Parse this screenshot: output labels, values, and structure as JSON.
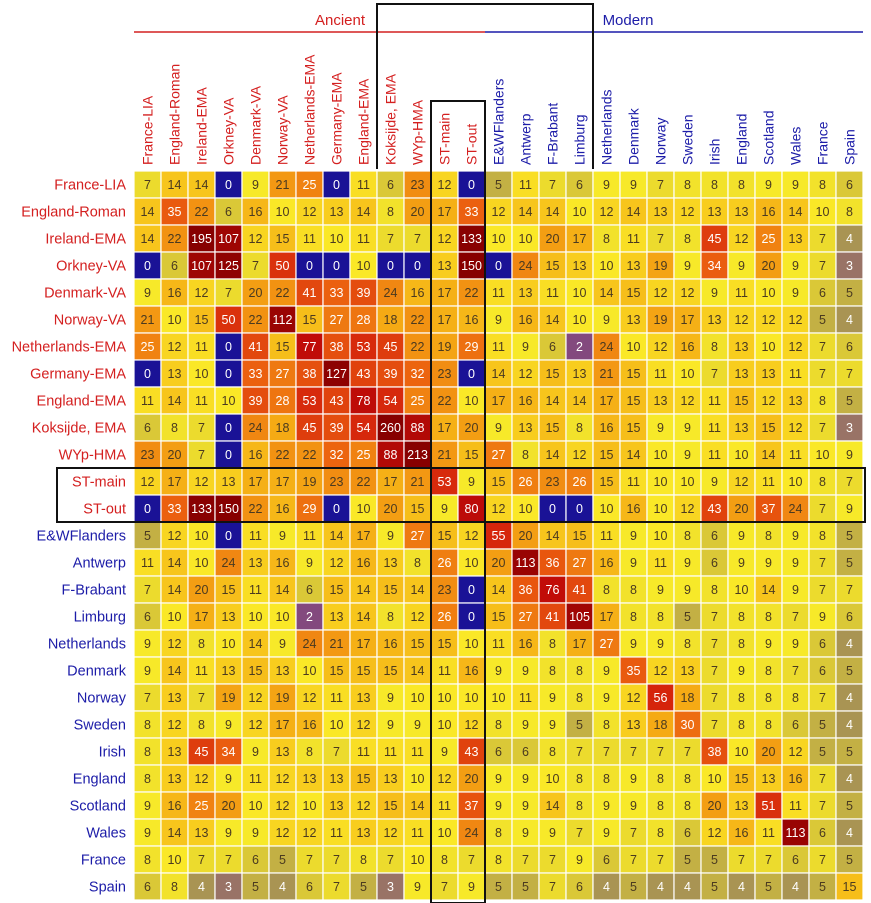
{
  "chart_data": {
    "type": "heatmap",
    "title": "",
    "groups": [
      {
        "name": "Ancient",
        "color": "#d42020"
      },
      {
        "name": "Modern",
        "color": "#1c1ca8"
      }
    ],
    "labels": [
      "France-LIA",
      "England-Roman",
      "Ireland-EMA",
      "Orkney-VA",
      "Denmark-VA",
      "Norway-VA",
      "Netherlands-EMA",
      "Germany-EMA",
      "England-EMA",
      "Koksijde, EMA",
      "WYp-HMA",
      "ST-main",
      "ST-out",
      "E&WFlanders",
      "Antwerp",
      "F-Brabant",
      "Limburg",
      "Netherlands",
      "Denmark",
      "Norway",
      "Sweden",
      "Irish",
      "England",
      "Scotland",
      "Wales",
      "France",
      "Spain"
    ],
    "label_groups": [
      0,
      0,
      0,
      0,
      0,
      0,
      0,
      0,
      0,
      0,
      0,
      0,
      0,
      1,
      1,
      1,
      1,
      1,
      1,
      1,
      1,
      1,
      1,
      1,
      1,
      1,
      1
    ],
    "highlighted": [
      "ST-main",
      "ST-out"
    ],
    "matrix": [
      [
        7,
        14,
        14,
        0,
        9,
        21,
        25,
        0,
        11,
        6,
        23,
        12,
        0,
        5,
        11,
        7,
        6,
        9,
        9,
        7,
        8,
        8,
        8,
        9,
        9,
        8,
        6
      ],
      [
        14,
        35,
        22,
        6,
        16,
        10,
        12,
        13,
        14,
        8,
        20,
        17,
        33,
        12,
        14,
        14,
        10,
        12,
        14,
        13,
        12,
        13,
        13,
        16,
        14,
        10,
        8
      ],
      [
        14,
        22,
        195,
        107,
        12,
        15,
        11,
        10,
        11,
        7,
        7,
        12,
        133,
        10,
        10,
        20,
        17,
        8,
        11,
        7,
        8,
        45,
        12,
        25,
        13,
        7,
        4
      ],
      [
        0,
        6,
        107,
        125,
        7,
        50,
        0,
        0,
        10,
        0,
        0,
        13,
        150,
        0,
        24,
        15,
        13,
        10,
        13,
        19,
        9,
        34,
        9,
        20,
        9,
        7,
        3
      ],
      [
        9,
        16,
        12,
        7,
        20,
        22,
        41,
        33,
        39,
        24,
        16,
        17,
        22,
        11,
        13,
        11,
        10,
        14,
        15,
        12,
        12,
        9,
        11,
        10,
        9,
        6,
        5
      ],
      [
        21,
        10,
        15,
        50,
        22,
        112,
        15,
        27,
        28,
        18,
        22,
        17,
        16,
        9,
        16,
        14,
        10,
        9,
        13,
        19,
        17,
        13,
        12,
        12,
        12,
        5,
        4
      ],
      [
        25,
        12,
        11,
        0,
        41,
        15,
        77,
        38,
        53,
        45,
        22,
        19,
        29,
        11,
        9,
        6,
        2,
        24,
        10,
        12,
        16,
        8,
        13,
        10,
        12,
        7,
        6
      ],
      [
        0,
        13,
        10,
        0,
        33,
        27,
        38,
        127,
        43,
        39,
        32,
        23,
        0,
        14,
        12,
        15,
        13,
        21,
        15,
        11,
        10,
        7,
        13,
        13,
        11,
        7,
        7
      ],
      [
        11,
        14,
        11,
        10,
        39,
        28,
        53,
        43,
        78,
        54,
        25,
        22,
        10,
        17,
        16,
        14,
        14,
        17,
        15,
        13,
        12,
        11,
        15,
        12,
        13,
        8,
        5
      ],
      [
        6,
        8,
        7,
        0,
        24,
        18,
        45,
        39,
        54,
        260,
        88,
        17,
        20,
        9,
        13,
        15,
        8,
        16,
        15,
        9,
        9,
        11,
        13,
        15,
        12,
        7,
        3
      ],
      [
        23,
        20,
        7,
        0,
        16,
        22,
        22,
        32,
        25,
        88,
        213,
        21,
        15,
        27,
        8,
        14,
        12,
        15,
        14,
        10,
        9,
        11,
        10,
        14,
        11,
        10,
        9
      ],
      [
        12,
        17,
        12,
        13,
        17,
        17,
        19,
        23,
        22,
        17,
        21,
        53,
        9,
        15,
        26,
        23,
        26,
        15,
        11,
        10,
        10,
        9,
        12,
        11,
        10,
        8,
        7
      ],
      [
        0,
        33,
        133,
        150,
        22,
        16,
        29,
        0,
        10,
        20,
        15,
        9,
        80,
        12,
        10,
        0,
        0,
        10,
        16,
        10,
        12,
        43,
        20,
        37,
        24,
        7,
        9
      ],
      [
        5,
        12,
        10,
        0,
        11,
        9,
        11,
        14,
        17,
        9,
        27,
        15,
        12,
        55,
        20,
        14,
        15,
        11,
        9,
        10,
        8,
        6,
        9,
        8,
        9,
        8,
        5
      ],
      [
        11,
        14,
        10,
        24,
        13,
        16,
        9,
        12,
        16,
        13,
        8,
        26,
        10,
        20,
        113,
        36,
        27,
        16,
        9,
        11,
        9,
        6,
        9,
        9,
        9,
        7,
        5
      ],
      [
        7,
        14,
        20,
        15,
        11,
        14,
        6,
        15,
        14,
        15,
        14,
        23,
        0,
        14,
        36,
        76,
        41,
        8,
        8,
        9,
        9,
        8,
        10,
        14,
        9,
        7,
        7
      ],
      [
        6,
        10,
        17,
        13,
        10,
        10,
        2,
        13,
        14,
        8,
        12,
        26,
        0,
        15,
        27,
        41,
        105,
        17,
        8,
        8,
        5,
        7,
        8,
        8,
        7,
        9,
        6
      ],
      [
        9,
        12,
        8,
        10,
        14,
        9,
        24,
        21,
        17,
        16,
        15,
        15,
        10,
        11,
        16,
        8,
        17,
        27,
        9,
        9,
        8,
        7,
        8,
        9,
        9,
        6,
        4
      ],
      [
        9,
        14,
        11,
        13,
        15,
        13,
        10,
        15,
        15,
        15,
        14,
        11,
        16,
        9,
        9,
        8,
        8,
        9,
        35,
        12,
        13,
        7,
        9,
        8,
        7,
        6,
        5
      ],
      [
        7,
        13,
        7,
        19,
        12,
        19,
        12,
        11,
        13,
        9,
        10,
        10,
        10,
        10,
        11,
        9,
        8,
        9,
        12,
        56,
        18,
        7,
        8,
        8,
        8,
        7,
        4
      ],
      [
        8,
        12,
        8,
        9,
        12,
        17,
        16,
        10,
        12,
        9,
        9,
        10,
        12,
        8,
        9,
        9,
        5,
        8,
        13,
        18,
        30,
        7,
        8,
        8,
        6,
        5,
        4
      ],
      [
        8,
        13,
        45,
        34,
        9,
        13,
        8,
        7,
        11,
        11,
        11,
        9,
        43,
        6,
        6,
        8,
        7,
        7,
        7,
        7,
        7,
        38,
        10,
        20,
        12,
        5,
        5
      ],
      [
        8,
        13,
        12,
        9,
        11,
        12,
        13,
        13,
        15,
        13,
        10,
        12,
        20,
        9,
        9,
        10,
        8,
        8,
        9,
        8,
        8,
        10,
        15,
        13,
        16,
        7,
        4
      ],
      [
        9,
        16,
        25,
        20,
        10,
        12,
        10,
        13,
        12,
        15,
        14,
        11,
        37,
        9,
        9,
        14,
        8,
        9,
        9,
        8,
        8,
        20,
        13,
        51,
        11,
        7,
        5
      ],
      [
        9,
        14,
        13,
        9,
        9,
        12,
        12,
        11,
        13,
        12,
        11,
        10,
        24,
        8,
        9,
        9,
        7,
        9,
        7,
        8,
        6,
        12,
        16,
        11,
        113,
        6,
        4
      ],
      [
        8,
        10,
        7,
        7,
        6,
        5,
        7,
        7,
        8,
        7,
        10,
        8,
        7,
        8,
        7,
        7,
        9,
        6,
        7,
        7,
        5,
        5,
        7,
        7,
        6,
        7,
        5
      ],
      [
        6,
        8,
        4,
        3,
        5,
        4,
        6,
        7,
        5,
        3,
        9,
        7,
        9,
        5,
        5,
        7,
        6,
        4,
        5,
        4,
        4,
        5,
        4,
        5,
        4,
        5,
        15
      ]
    ]
  }
}
